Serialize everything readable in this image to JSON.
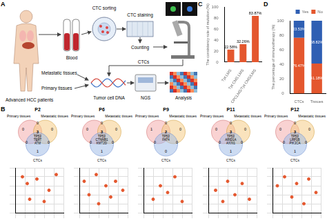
{
  "panel_labels": [
    "A",
    "B",
    "C",
    "D"
  ],
  "workflow": {
    "patients": "Advanced HCC patients",
    "blood": "Blood",
    "ctc_sorting": "CTC sorting",
    "ctc_staining": "CTC staining",
    "counting": "Counting",
    "metastatic": "Metastatic tissues",
    "primary": "Primary tissues",
    "ctcs": "CTCs",
    "dna": "Tumor cell DNA",
    "ngs": "NGS",
    "analysis": "Analysis"
  },
  "venn_diagrams": [
    {
      "patient": "P2",
      "set_labels": [
        "Primary tissues",
        "Metastatic tissues",
        "CTCs"
      ],
      "regions": {
        "primary": 0,
        "metastatic": 0,
        "ctcs": 1,
        "primary_metastatic": 0,
        "primary_ctcs": 0,
        "metastatic_ctcs": 0,
        "all": 3
      },
      "shared_genes": [
        "TP53",
        "TERT",
        "ATM"
      ]
    },
    {
      "patient": "P6",
      "set_labels": [
        "Primary tissues",
        "Metastatic tissues",
        "CTCs"
      ],
      "regions": {
        "primary": 0,
        "metastatic": 0,
        "ctcs": 1,
        "primary_metastatic": 0,
        "primary_ctcs": 0,
        "metastatic_ctcs": 0,
        "all": 3
      },
      "shared_genes": [
        "TP53",
        "CTNNB1",
        "KMT2D"
      ]
    },
    {
      "patient": "P9",
      "set_labels": [
        "Primary tissues",
        "Metastatic tissues",
        "CTCs"
      ],
      "regions": {
        "primary": 1,
        "metastatic": 0,
        "ctcs": 0,
        "primary_metastatic": 0,
        "primary_ctcs": 0,
        "metastatic_ctcs": 0,
        "all": 2
      },
      "shared_genes": [
        "TP53",
        "FAT4"
      ]
    },
    {
      "patient": "P11",
      "set_labels": [
        "Primary tissues",
        "Metastatic tissues",
        "CTCs"
      ],
      "regions": {
        "primary": 0,
        "metastatic": 0,
        "ctcs": 1,
        "primary_metastatic": 0,
        "primary_ctcs": 0,
        "metastatic_ctcs": 0,
        "all": 3
      },
      "shared_genes": [
        "TP53",
        "ARID1A",
        "AXIN1"
      ]
    },
    {
      "patient": "P12",
      "set_labels": [
        "Primary tissues",
        "Metastatic tissues",
        "CTCs"
      ],
      "regions": {
        "primary": 0,
        "metastatic": 0,
        "ctcs": 1,
        "primary_metastatic": 0,
        "primary_ctcs": 0,
        "metastatic_ctcs": 0,
        "all": 3
      },
      "shared_genes": [
        "TP53",
        "LRP1B",
        "PIK3CA"
      ]
    }
  ],
  "chart_data": [
    {
      "type": "bar",
      "categories": [
        "Tpt LMS",
        "Tpt CMS LMS",
        "CPCLMS/Tpt CMS/LMS"
      ],
      "values": [
        22.58,
        32.26,
        83.87
      ],
      "value_labels": [
        "22.58%",
        "32.26%",
        "83.87%"
      ],
      "color": "#e4572e",
      "y_label": "The consistency rate of mutation (%)",
      "ylim": [
        0,
        100
      ],
      "yticks": [
        0,
        20,
        40,
        60,
        80,
        100
      ],
      "grid": false,
      "data_labels": true
    },
    {
      "type": "bar",
      "stacked": true,
      "categories": [
        "CTCs",
        "Tissues"
      ],
      "series": [
        {
          "name": "Yes",
          "color": "#2f5fb3",
          "values": [
            23.53,
            58.82
          ],
          "value_labels": [
            "23.53%",
            "58.82%"
          ]
        },
        {
          "name": "No",
          "color": "#e4572e",
          "values": [
            76.47,
            41.18
          ],
          "value_labels": [
            "76.47%",
            "41.18%"
          ]
        }
      ],
      "y_label": "The percentage of immunotherapy (%)",
      "ylim": [
        0,
        100
      ],
      "yticks": [
        0,
        20,
        40,
        60,
        80,
        100
      ],
      "grid": false,
      "legend": "top-right",
      "data_labels": true
    },
    {
      "type": "scatter",
      "x": [
        1.5,
        2.5,
        3,
        4.5,
        6,
        7,
        8.5
      ],
      "values": [
        8,
        6.5,
        3,
        7.5,
        2.5,
        5,
        8.5
      ],
      "color": "#e4572e",
      "marker": "circle",
      "xlim": [
        0,
        10
      ],
      "ylim": [
        0,
        10
      ],
      "xticks": [
        0,
        2,
        4,
        6,
        8,
        10
      ],
      "yticks": [
        0,
        2,
        4,
        6,
        8,
        10
      ],
      "grid": true,
      "tick_labels": false
    },
    {
      "type": "scatter",
      "x": [
        1,
        2,
        3.5,
        4,
        5.5,
        6.5,
        7.5,
        9
      ],
      "values": [
        7,
        4,
        8.5,
        2,
        6,
        3.5,
        7,
        5
      ],
      "color": "#e4572e",
      "marker": "circle",
      "xlim": [
        0,
        10
      ],
      "ylim": [
        0,
        10
      ],
      "xticks": [
        0,
        2,
        4,
        6,
        8,
        10
      ],
      "yticks": [
        0,
        2,
        4,
        6,
        8,
        10
      ],
      "grid": true,
      "tick_labels": false
    },
    {
      "type": "scatter",
      "x": [
        2,
        3.5,
        5,
        6.5,
        8
      ],
      "values": [
        3,
        6,
        4.5,
        8,
        2.5
      ],
      "color": "#e4572e",
      "marker": "circle",
      "xlim": [
        0,
        10
      ],
      "ylim": [
        0,
        10
      ],
      "xticks": [
        0,
        2,
        4,
        6,
        8,
        10
      ],
      "yticks": [
        0,
        2,
        4,
        6,
        8,
        10
      ],
      "grid": true,
      "tick_labels": false
    },
    {
      "type": "scatter",
      "x": [
        1.5,
        3,
        4,
        5.5,
        7,
        8.5
      ],
      "values": [
        5,
        2.5,
        7,
        4,
        6.5,
        3
      ],
      "color": "#e4572e",
      "marker": "circle",
      "xlim": [
        0,
        10
      ],
      "ylim": [
        0,
        10
      ],
      "xticks": [
        0,
        2,
        4,
        6,
        8,
        10
      ],
      "yticks": [
        0,
        2,
        4,
        6,
        8,
        10
      ],
      "grid": true,
      "tick_labels": false
    },
    {
      "type": "scatter",
      "x": [
        1,
        2.5,
        4,
        5,
        6.5,
        7.5,
        9
      ],
      "values": [
        6,
        8,
        3.5,
        6.5,
        2,
        7.5,
        4.5
      ],
      "color": "#e4572e",
      "marker": "circle",
      "xlim": [
        0,
        10
      ],
      "ylim": [
        0,
        10
      ],
      "xticks": [
        0,
        2,
        4,
        6,
        8,
        10
      ],
      "yticks": [
        0,
        2,
        4,
        6,
        8,
        10
      ],
      "grid": true,
      "tick_labels": false
    }
  ]
}
